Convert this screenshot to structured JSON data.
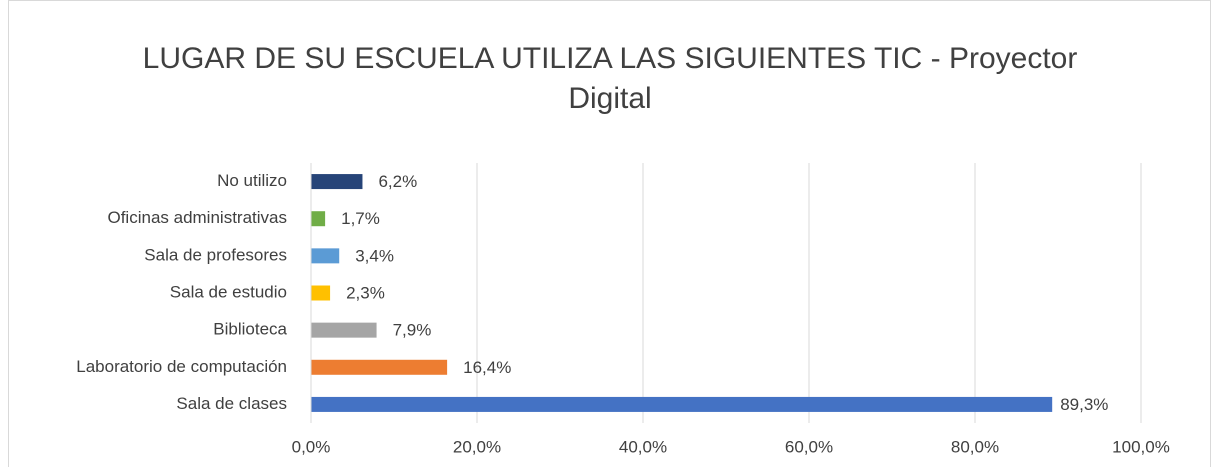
{
  "chart_data": {
    "type": "barh",
    "title": "LUGAR DE SU ESCUELA UTILIZA LAS SIGUIENTES TIC - Proyector Digital",
    "categories": [
      "No utilizo",
      "Oficinas administrativas",
      "Sala de profesores",
      "Sala de estudio",
      "Biblioteca",
      "Laboratorio de computación",
      "Sala de clases"
    ],
    "values": [
      6.2,
      1.7,
      3.4,
      2.3,
      7.9,
      16.4,
      89.3
    ],
    "value_labels": [
      "6,2%",
      "1,7%",
      "3,4%",
      "2,3%",
      "7,9%",
      "16,4%",
      "89,3%"
    ],
    "colors": [
      "#264478",
      "#70ad47",
      "#5b9bd5",
      "#ffc000",
      "#a5a5a5",
      "#ed7d31",
      "#4472c4"
    ],
    "xlim": [
      0,
      100
    ],
    "xticks": [
      {
        "value": 0,
        "label": "0,0%"
      },
      {
        "value": 20,
        "label": "20,0%"
      },
      {
        "value": 40,
        "label": "40,0%"
      },
      {
        "value": 60,
        "label": "60,0%"
      },
      {
        "value": 80,
        "label": "80,0%"
      },
      {
        "value": 100,
        "label": "100,0%"
      }
    ],
    "grid": true
  }
}
